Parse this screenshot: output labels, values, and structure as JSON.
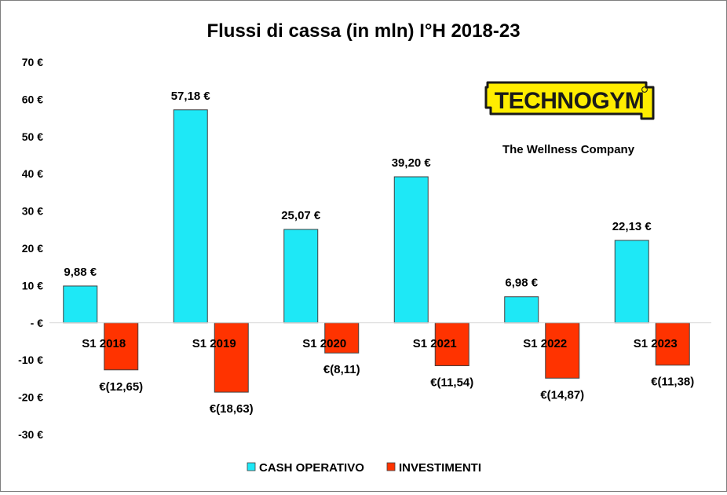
{
  "chart_data": {
    "type": "bar",
    "title": "Flussi di cassa (in mln) I°H 2018-23",
    "categories": [
      "S1 2018",
      "S1 2019",
      "S1 2020",
      "S1 2021",
      "S1 2022",
      "S1 2023"
    ],
    "series": [
      {
        "name": "CASH OPERATIVO",
        "color": "#1ee8f6",
        "values": [
          9.88,
          57.18,
          25.07,
          39.2,
          6.98,
          22.13
        ],
        "labels": [
          "9,88 €",
          "57,18 €",
          "25,07 €",
          "39,20 €",
          "6,98 €",
          "22,13 €"
        ]
      },
      {
        "name": "INVESTIMENTI",
        "color": "#ff3300",
        "values": [
          -12.65,
          -18.63,
          -8.11,
          -11.54,
          -14.87,
          -11.38
        ],
        "labels": [
          "€(12,65)",
          "€(18,63)",
          "€(8,11)",
          "€(11,54)",
          "€(14,87)",
          "€(11,38)"
        ]
      }
    ],
    "ylim": [
      -30,
      70
    ],
    "yticks": [
      70,
      60,
      50,
      40,
      30,
      20,
      10,
      0,
      -10,
      -20,
      -30
    ],
    "ytick_labels": [
      "70 €",
      "60 €",
      "50 €",
      "40 €",
      "30 €",
      "20 €",
      "10 €",
      "- €",
      "-10 €",
      "-20 €",
      "-30 €"
    ],
    "grid": false,
    "legend": "bottom"
  },
  "logo": {
    "brand": "TECHNOGYM",
    "tagline": "The Wellness Company",
    "color": "#ffed00"
  }
}
